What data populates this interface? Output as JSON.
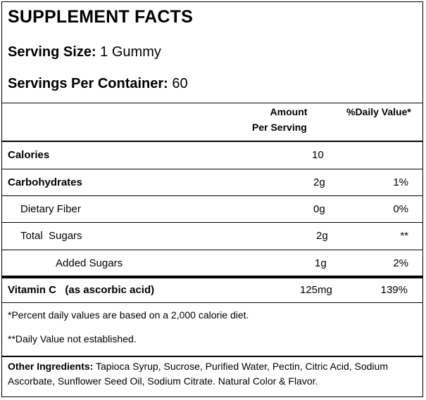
{
  "title": "SUPPLEMENT FACTS",
  "serving_size": {
    "label": "Serving Size:",
    "value": "1 Gummy"
  },
  "servings_per_container": {
    "label": "Servings Per Container:",
    "value": "60"
  },
  "columns": {
    "amount_line1": "Amount",
    "amount_line2": "Per Serving",
    "daily_value": "%Daily Value*"
  },
  "rows": [
    {
      "label": "Calories",
      "amount": "10",
      "dv": ""
    },
    {
      "label": "Carbohydrates",
      "amount": "2g",
      "dv": "1%"
    },
    {
      "label": "Dietary Fiber",
      "amount": "0g",
      "dv": "0%"
    },
    {
      "label": "Total  Sugars",
      "amount": "2g",
      "dv": "**"
    },
    {
      "label": "Added Sugars",
      "amount": "1g",
      "dv": "2%"
    },
    {
      "label": "Vitamin C   (as ascorbic acid)",
      "amount": "125mg",
      "dv": "139%"
    }
  ],
  "footnotes": {
    "percent_note": "*Percent daily values are based on a 2,000 calorie diet.",
    "not_established": "**Daily Value not established."
  },
  "ingredients": {
    "label": "Other Ingredients:",
    "text": " Tapioca Syrup, Sucrose, Purified Water, Pectin, Citric Acid, Sodium Ascorbate,  Sunflower Seed Oil, Sodium Citrate. Natural Color & Flavor."
  }
}
